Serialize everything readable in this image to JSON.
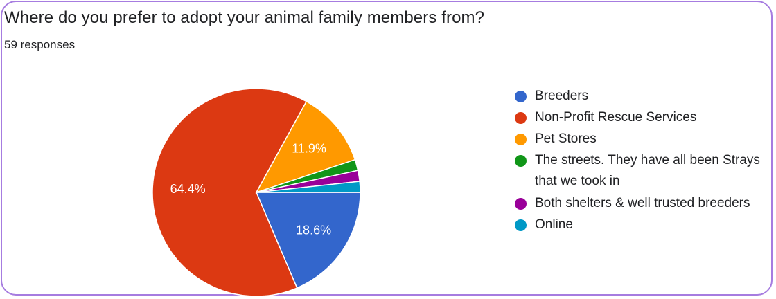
{
  "header": {
    "title": "Where do you prefer to adopt your animal family members from?",
    "responses": "59 responses"
  },
  "chart_data": {
    "type": "pie",
    "title": "Where do you prefer to adopt your animal family members from?",
    "legend_position": "right",
    "slices": [
      {
        "label": "Breeders",
        "value": 18.6,
        "display": "18.6%",
        "color": "#3366cc"
      },
      {
        "label": "Non-Profit Rescue Services",
        "value": 64.4,
        "display": "64.4%",
        "color": "#dc3912"
      },
      {
        "label": "Pet Stores",
        "value": 11.9,
        "display": "11.9%",
        "color": "#ff9900"
      },
      {
        "label": "The streets. They have all been Strays that we took in",
        "value": 1.7,
        "display": "",
        "color": "#109618"
      },
      {
        "label": "Both shelters & well trusted breeders",
        "value": 1.7,
        "display": "",
        "color": "#990099"
      },
      {
        "label": "Online",
        "value": 1.7,
        "display": "",
        "color": "#0099c6"
      }
    ]
  }
}
